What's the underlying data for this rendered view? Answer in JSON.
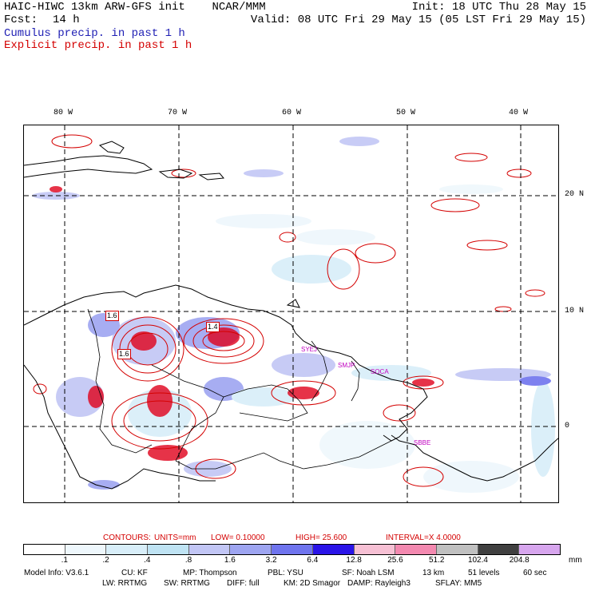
{
  "header": {
    "model_title": "HAIC-HIWC 13km ARW-GFS init    NCAR/MMM",
    "init": "Init: 18 UTC Thu 28 May 15",
    "fcst_label": "Fcst:",
    "fcst_value": "14 h",
    "valid": "Valid: 08 UTC Fri 29 May 15 (05 LST Fri 29 May 15)",
    "legend_cumulus": "Cumulus precip. in past 1 h",
    "legend_explicit": "Explicit precip. in past 1 h"
  },
  "map": {
    "lon_labels": [
      "80 W",
      "70 W",
      "60 W",
      "50 W",
      "40 W"
    ],
    "lat_labels": [
      "20 N",
      "10 N",
      "0"
    ],
    "contour_labels": [
      "1.6",
      "1.4",
      "1.6"
    ],
    "stations": [
      "SYEJ",
      "SMJP",
      "SOCA",
      "SBBE"
    ]
  },
  "contours": {
    "label": "CONTOURS:",
    "units": "UNITS=mm",
    "low": "LOW=  0.10000",
    "high": "HIGH=  25.600",
    "interval": "INTERVAL=X  4.0000"
  },
  "colorbar": {
    "labels": [
      ".1",
      ".2",
      ".4",
      ".8",
      "1.6",
      "3.2",
      "6.4",
      "12.8",
      "25.6",
      "51.2",
      "102.4",
      "204.8"
    ],
    "units": "mm",
    "colors": [
      "#ffffff",
      "#eef7fc",
      "#d8eef9",
      "#bfe3f3",
      "#c2c6f5",
      "#9ea5f1",
      "#6f74ee",
      "#2a14e8",
      "#f6c0d4",
      "#f389b0",
      "#c0c0c0",
      "#404040",
      "#d7a6ee"
    ]
  },
  "model_info": {
    "line1": [
      "Model Info: V3.6.1",
      "CU: KF",
      "MP: Thompson",
      "PBL: YSU",
      "SF: Noah LSM",
      "13 km",
      "51 levels",
      "60 sec"
    ],
    "line2": [
      "LW: RRTMG",
      "SW: RRTMG",
      "DIFF: full",
      "KM: 2D Smagor",
      "DAMP: Rayleigh3",
      "SFLAY: MM5"
    ]
  }
}
